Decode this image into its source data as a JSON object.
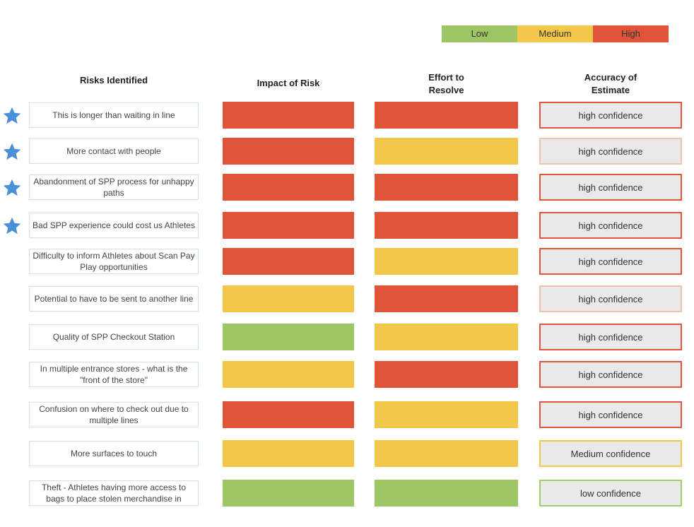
{
  "colors": {
    "low": "#9dc563",
    "medium": "#f2c84b",
    "high": "#e0553a"
  },
  "legend": [
    {
      "label": "Low",
      "level": "low"
    },
    {
      "label": "Medium",
      "level": "medium"
    },
    {
      "label": "High",
      "level": "high"
    }
  ],
  "headers": {
    "risks": "Risks Identified",
    "impact": "Impact of Risk",
    "effort_line1": "Effort to",
    "effort_line2": "Resolve",
    "accuracy_line1": "Accuracy of",
    "accuracy_line2": "Estimate"
  },
  "rows": [
    {
      "risk": "This is longer than waiting in line",
      "starred": true,
      "impact": "high",
      "effort": "high",
      "accuracy": "high confidence",
      "accuracy_border": "high"
    },
    {
      "risk": "More contact with people",
      "starred": true,
      "impact": "high",
      "effort": "medium",
      "accuracy": "high confidence",
      "accuracy_border": "lowconf"
    },
    {
      "risk": "Abandonment of SPP process for unhappy paths",
      "starred": true,
      "impact": "high",
      "effort": "high",
      "accuracy": "high confidence",
      "accuracy_border": "high"
    },
    {
      "risk": "Bad SPP experience could cost us Athletes",
      "starred": true,
      "impact": "high",
      "effort": "high",
      "accuracy": "high confidence",
      "accuracy_border": "high"
    },
    {
      "risk": "Difficulty to inform Athletes about Scan Pay Play opportunities",
      "starred": false,
      "impact": "high",
      "effort": "medium",
      "accuracy": "high confidence",
      "accuracy_border": "high"
    },
    {
      "risk": "Potential to have to be sent to another line",
      "starred": false,
      "impact": "medium",
      "effort": "high",
      "accuracy": "high confidence",
      "accuracy_border": "lowconf"
    },
    {
      "risk": "Quality of SPP Checkout Station",
      "starred": false,
      "impact": "low",
      "effort": "medium",
      "accuracy": "high confidence",
      "accuracy_border": "high"
    },
    {
      "risk": "In multiple entrance stores - what is the \"front of the store\"",
      "starred": false,
      "impact": "medium",
      "effort": "high",
      "accuracy": "high confidence",
      "accuracy_border": "high"
    },
    {
      "risk": "Confusion on where to check out due to multiple lines",
      "starred": false,
      "impact": "high",
      "effort": "medium",
      "accuracy": "high confidence",
      "accuracy_border": "high"
    },
    {
      "risk": "More surfaces to touch",
      "starred": false,
      "impact": "medium",
      "effort": "medium",
      "accuracy": "Medium confidence",
      "accuracy_border": "medconf"
    },
    {
      "risk": "Theft - Athletes having more access to bags to place stolen merchandise in",
      "starred": false,
      "impact": "low",
      "effort": "low",
      "accuracy": "low confidence",
      "accuracy_border": "greenconf"
    }
  ]
}
